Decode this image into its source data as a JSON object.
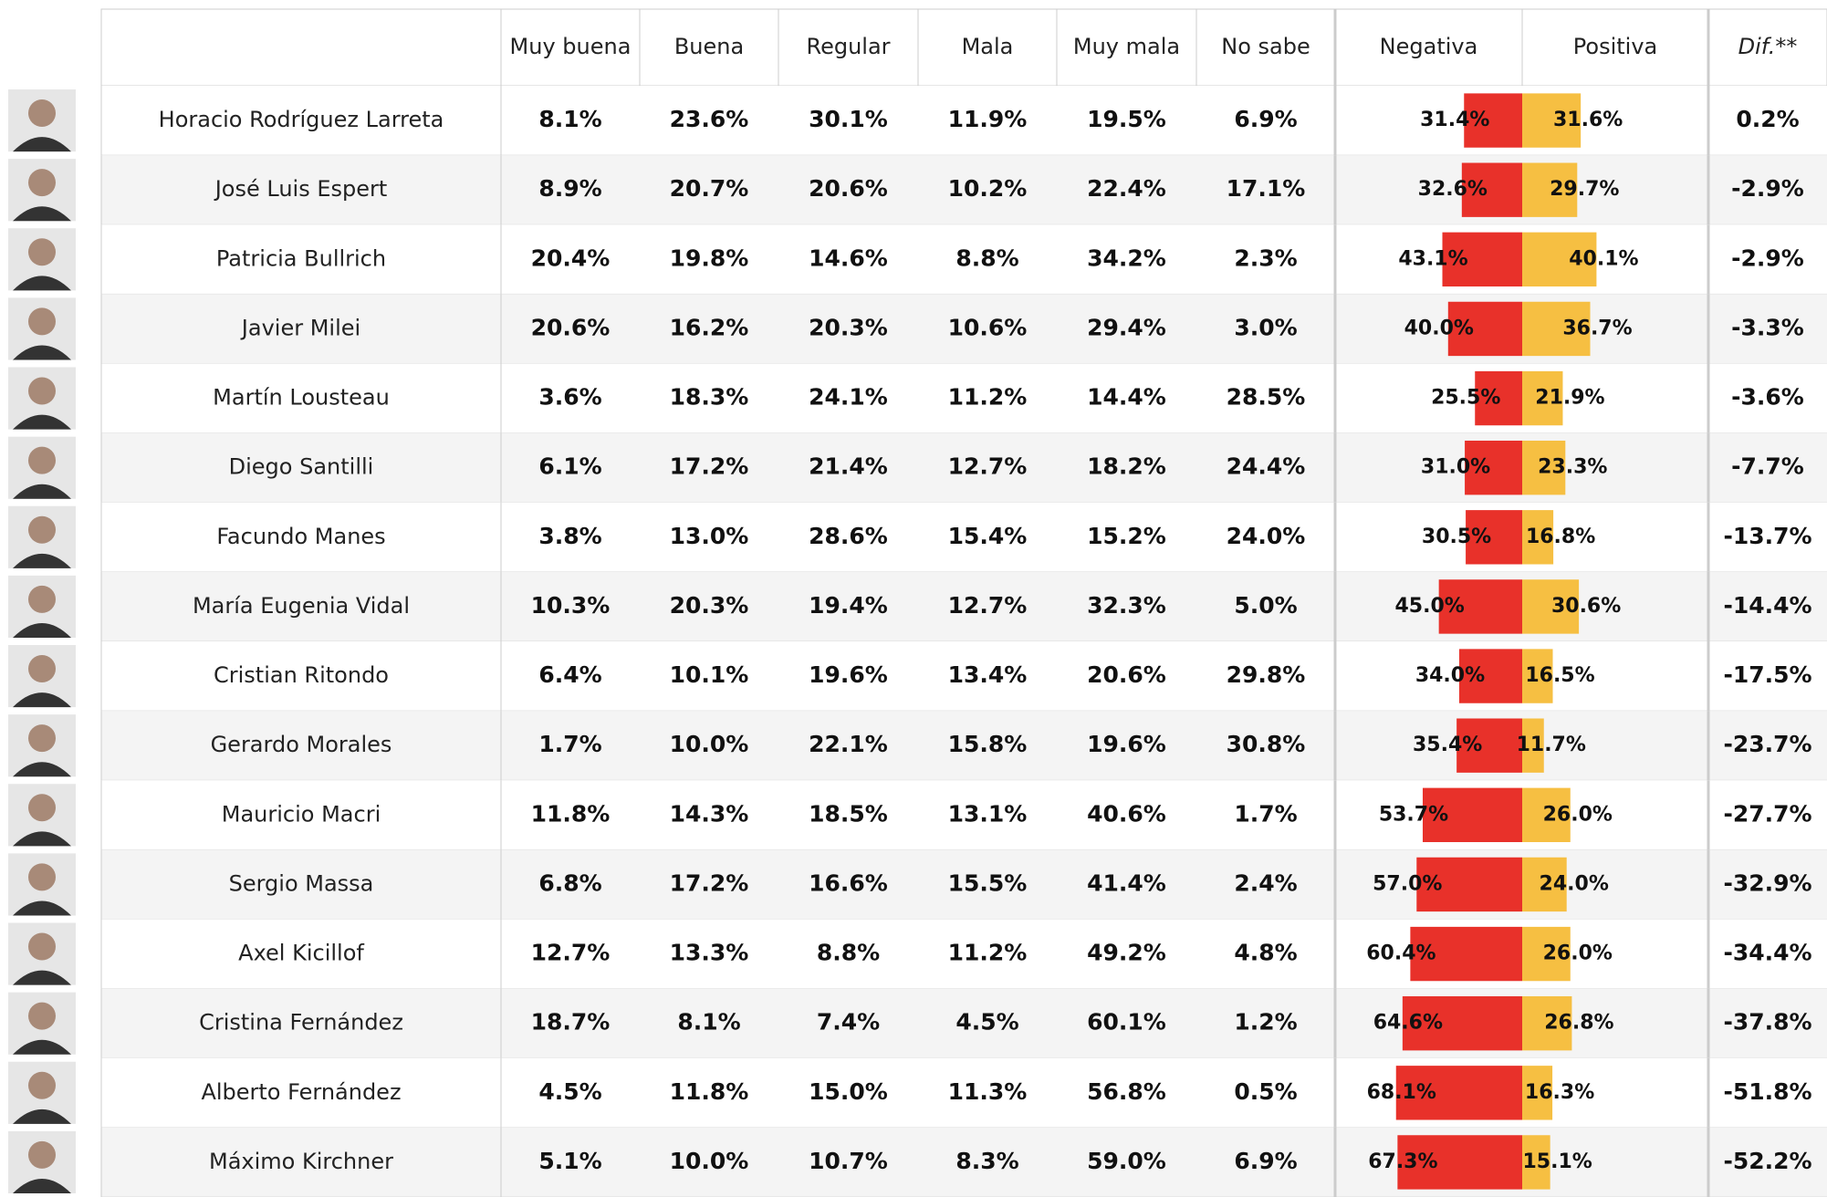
{
  "table": {
    "headers": [
      "Muy buena",
      "Buena",
      "Regular",
      "Mala",
      "Muy mala",
      "No sabe",
      "Negativa",
      "Positiva",
      "Dif.**"
    ],
    "rows": [
      {
        "name": "Horacio Rodríguez Larreta",
        "cells": [
          "8.1%",
          "23.6%",
          "30.1%",
          "11.9%",
          "19.5%",
          "6.9%"
        ],
        "negativa": {
          "value": 31.4,
          "label": "31.4%"
        },
        "positiva": {
          "value": 31.6,
          "label": "31.6%"
        },
        "dif": "0.2%"
      },
      {
        "name": "José Luis Espert",
        "cells": [
          "8.9%",
          "20.7%",
          "20.6%",
          "10.2%",
          "22.4%",
          "17.1%"
        ],
        "negativa": {
          "value": 32.6,
          "label": "32.6%"
        },
        "positiva": {
          "value": 29.7,
          "label": "29.7%"
        },
        "dif": "-2.9%"
      },
      {
        "name": "Patricia Bullrich",
        "cells": [
          "20.4%",
          "19.8%",
          "14.6%",
          "8.8%",
          "34.2%",
          "2.3%"
        ],
        "negativa": {
          "value": 43.1,
          "label": "43.1%"
        },
        "positiva": {
          "value": 40.1,
          "label": "40.1%"
        },
        "dif": "-2.9%"
      },
      {
        "name": "Javier Milei",
        "cells": [
          "20.6%",
          "16.2%",
          "20.3%",
          "10.6%",
          "29.4%",
          "3.0%"
        ],
        "negativa": {
          "value": 40.0,
          "label": "40.0%"
        },
        "positiva": {
          "value": 36.7,
          "label": "36.7%"
        },
        "dif": "-3.3%"
      },
      {
        "name": "Martín Lousteau",
        "cells": [
          "3.6%",
          "18.3%",
          "24.1%",
          "11.2%",
          "14.4%",
          "28.5%"
        ],
        "negativa": {
          "value": 25.5,
          "label": "25.5%"
        },
        "positiva": {
          "value": 21.9,
          "label": "21.9%"
        },
        "dif": "-3.6%"
      },
      {
        "name": "Diego Santilli",
        "cells": [
          "6.1%",
          "17.2%",
          "21.4%",
          "12.7%",
          "18.2%",
          "24.4%"
        ],
        "negativa": {
          "value": 31.0,
          "label": "31.0%"
        },
        "positiva": {
          "value": 23.3,
          "label": "23.3%"
        },
        "dif": "-7.7%"
      },
      {
        "name": "Facundo Manes",
        "cells": [
          "3.8%",
          "13.0%",
          "28.6%",
          "15.4%",
          "15.2%",
          "24.0%"
        ],
        "negativa": {
          "value": 30.5,
          "label": "30.5%"
        },
        "positiva": {
          "value": 16.8,
          "label": "16.8%"
        },
        "dif": "-13.7%"
      },
      {
        "name": "María Eugenia Vidal",
        "cells": [
          "10.3%",
          "20.3%",
          "19.4%",
          "12.7%",
          "32.3%",
          "5.0%"
        ],
        "negativa": {
          "value": 45.0,
          "label": "45.0%"
        },
        "positiva": {
          "value": 30.6,
          "label": "30.6%"
        },
        "dif": "-14.4%"
      },
      {
        "name": "Cristian Ritondo",
        "cells": [
          "6.4%",
          "10.1%",
          "19.6%",
          "13.4%",
          "20.6%",
          "29.8%"
        ],
        "negativa": {
          "value": 34.0,
          "label": "34.0%"
        },
        "positiva": {
          "value": 16.5,
          "label": "16.5%"
        },
        "dif": "-17.5%"
      },
      {
        "name": "Gerardo Morales",
        "cells": [
          "1.7%",
          "10.0%",
          "22.1%",
          "15.8%",
          "19.6%",
          "30.8%"
        ],
        "negativa": {
          "value": 35.4,
          "label": "35.4%"
        },
        "positiva": {
          "value": 11.7,
          "label": "11.7%"
        },
        "dif": "-23.7%"
      },
      {
        "name": "Mauricio Macri",
        "cells": [
          "11.8%",
          "14.3%",
          "18.5%",
          "13.1%",
          "40.6%",
          "1.7%"
        ],
        "negativa": {
          "value": 53.7,
          "label": "53.7%"
        },
        "positiva": {
          "value": 26.0,
          "label": "26.0%"
        },
        "dif": "-27.7%"
      },
      {
        "name": "Sergio Massa",
        "cells": [
          "6.8%",
          "17.2%",
          "16.6%",
          "15.5%",
          "41.4%",
          "2.4%"
        ],
        "negativa": {
          "value": 57.0,
          "label": "57.0%"
        },
        "positiva": {
          "value": 24.0,
          "label": "24.0%"
        },
        "dif": "-32.9%"
      },
      {
        "name": "Axel Kicillof",
        "cells": [
          "12.7%",
          "13.3%",
          "8.8%",
          "11.2%",
          "49.2%",
          "4.8%"
        ],
        "negativa": {
          "value": 60.4,
          "label": "60.4%"
        },
        "positiva": {
          "value": 26.0,
          "label": "26.0%"
        },
        "dif": "-34.4%"
      },
      {
        "name": "Cristina Fernández",
        "cells": [
          "18.7%",
          "8.1%",
          "7.4%",
          "4.5%",
          "60.1%",
          "1.2%"
        ],
        "negativa": {
          "value": 64.6,
          "label": "64.6%"
        },
        "positiva": {
          "value": 26.8,
          "label": "26.8%"
        },
        "dif": "-37.8%"
      },
      {
        "name": "Alberto Fernández",
        "cells": [
          "4.5%",
          "11.8%",
          "15.0%",
          "11.3%",
          "56.8%",
          "0.5%"
        ],
        "negativa": {
          "value": 68.1,
          "label": "68.1%"
        },
        "positiva": {
          "value": 16.3,
          "label": "16.3%"
        },
        "dif": "-51.8%"
      },
      {
        "name": "Máximo Kirchner",
        "cells": [
          "5.1%",
          "10.0%",
          "10.7%",
          "8.3%",
          "59.0%",
          "6.9%"
        ],
        "negativa": {
          "value": 67.3,
          "label": "67.3%"
        },
        "positiva": {
          "value": 15.1,
          "label": "15.1%"
        },
        "dif": "-52.2%"
      }
    ],
    "negative_color": "#e8312a",
    "positive_color": "#f6bf42"
  }
}
